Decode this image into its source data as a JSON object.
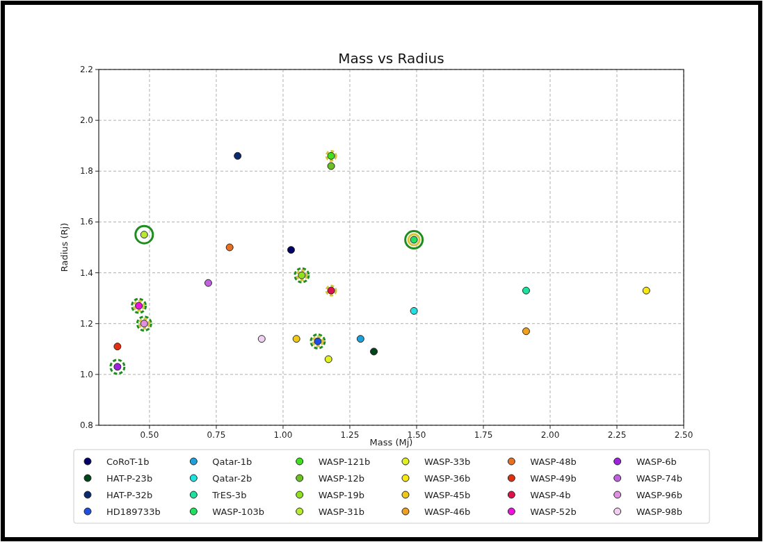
{
  "chart_data": {
    "type": "scatter",
    "title": "Mass vs Radius",
    "xlabel": "Mass (Mj)",
    "ylabel": "Radius (Rj)",
    "xlim": [
      0.31,
      2.5
    ],
    "ylim": [
      0.8,
      2.2
    ],
    "xticks": [
      {
        "value": 0.5,
        "label": "0.50"
      },
      {
        "value": 0.75,
        "label": "0.75"
      },
      {
        "value": 1,
        "label": "1.00"
      },
      {
        "value": 1.25,
        "label": "1.25"
      },
      {
        "value": 1.5,
        "label": "1.50"
      },
      {
        "value": 1.75,
        "label": "1.75"
      },
      {
        "value": 2,
        "label": "2.00"
      },
      {
        "value": 2.25,
        "label": "2.25"
      },
      {
        "value": 2.5,
        "label": "2.50"
      }
    ],
    "yticks": [
      {
        "value": 0.8,
        "label": "0.8"
      },
      {
        "value": 1,
        "label": "1.0"
      },
      {
        "value": 1.2,
        "label": "1.2"
      },
      {
        "value": 1.4,
        "label": "1.4"
      },
      {
        "value": 1.6,
        "label": "1.6"
      },
      {
        "value": 1.8,
        "label": "1.8"
      },
      {
        "value": 2,
        "label": "2.0"
      },
      {
        "value": 2.2,
        "label": "2.2"
      }
    ],
    "grid": true,
    "legend": "bottom",
    "marker": "circle",
    "series": [
      {
        "color": "#1e8c1e",
        "line_style": "solid",
        "x": [
          0.48,
          1.49
        ],
        "values": [
          1.55,
          1.53
        ]
      },
      {
        "color": "#1e8c1e",
        "line_style": "dashed",
        "x": [
          0.38,
          0.46,
          0.48,
          1.07,
          1.13
        ],
        "values": [
          1.03,
          1.27,
          1.2,
          1.39,
          1.13
        ]
      },
      {
        "color": "#d4c43a",
        "line_style": "solid",
        "x": [
          1.49
        ],
        "values": [
          1.53
        ]
      },
      {
        "color": "#d4c43a",
        "line_style": "dashed",
        "x": [
          0.46,
          0.48,
          1.07,
          1.13,
          1.18,
          1.18
        ],
        "values": [
          1.27,
          1.2,
          1.39,
          1.13,
          1.86,
          1.33
        ]
      },
      {
        "name": "CoRoT-1b",
        "color": "#000066",
        "x": [
          1.03
        ],
        "values": [
          1.49
        ]
      },
      {
        "name": "HAT-P-23b",
        "color": "#00441b",
        "x": [
          1.34
        ],
        "values": [
          1.09
        ]
      },
      {
        "name": "HAT-P-32b",
        "color": "#0d2a6e",
        "x": [
          0.83
        ],
        "values": [
          1.86
        ]
      },
      {
        "name": "HD189733b",
        "color": "#1f4fe0",
        "x": [
          1.13
        ],
        "values": [
          1.13
        ]
      },
      {
        "name": "Qatar-1b",
        "color": "#1fa0d8",
        "x": [
          1.29
        ],
        "values": [
          1.14
        ]
      },
      {
        "name": "Qatar-2b",
        "color": "#20e0e0",
        "x": [
          1.49
        ],
        "values": [
          1.25
        ]
      },
      {
        "name": "TrES-3b",
        "color": "#20e0a0",
        "x": [
          1.91
        ],
        "values": [
          1.33
        ]
      },
      {
        "name": "WASP-103b",
        "color": "#20e060",
        "x": [
          1.49
        ],
        "values": [
          1.53
        ]
      },
      {
        "name": "WASP-121b",
        "color": "#40e020",
        "x": [
          1.18
        ],
        "values": [
          1.86
        ]
      },
      {
        "name": "WASP-12b",
        "color": "#6cc020",
        "x": [
          1.18
        ],
        "values": [
          1.82
        ]
      },
      {
        "name": "WASP-19b",
        "color": "#90e020",
        "x": [
          1.07
        ],
        "values": [
          1.39
        ]
      },
      {
        "name": "WASP-31b",
        "color": "#b8e830",
        "x": [
          0.48
        ],
        "values": [
          1.55
        ]
      },
      {
        "name": "WASP-33b",
        "color": "#e0f020",
        "x": [
          1.17
        ],
        "values": [
          1.06
        ]
      },
      {
        "name": "WASP-36b",
        "color": "#f8e810",
        "x": [
          2.36
        ],
        "values": [
          1.33
        ]
      },
      {
        "name": "WASP-45b",
        "color": "#f0c818",
        "x": [
          1.05
        ],
        "values": [
          1.14
        ]
      },
      {
        "name": "WASP-46b",
        "color": "#f0a020",
        "x": [
          1.91
        ],
        "values": [
          1.17
        ]
      },
      {
        "name": "WASP-48b",
        "color": "#e87020",
        "x": [
          0.8
        ],
        "values": [
          1.5
        ]
      },
      {
        "name": "WASP-49b",
        "color": "#e03010",
        "x": [
          0.38
        ],
        "values": [
          1.11
        ]
      },
      {
        "name": "WASP-4b",
        "color": "#e0104a",
        "x": [
          1.18
        ],
        "values": [
          1.33
        ]
      },
      {
        "name": "WASP-52b",
        "color": "#f010e0",
        "x": [
          0.46
        ],
        "values": [
          1.27
        ]
      },
      {
        "name": "WASP-6b",
        "color": "#a020e0",
        "x": [
          0.38
        ],
        "values": [
          1.03
        ]
      },
      {
        "name": "WASP-74b",
        "color": "#c060e0",
        "x": [
          0.72
        ],
        "values": [
          1.36
        ]
      },
      {
        "name": "WASP-96b",
        "color": "#e090e0",
        "x": [
          0.48
        ],
        "values": [
          1.2
        ]
      },
      {
        "name": "WASP-98b",
        "color": "#f0d0f0",
        "x": [
          0.92
        ],
        "values": [
          1.14
        ]
      }
    ]
  }
}
